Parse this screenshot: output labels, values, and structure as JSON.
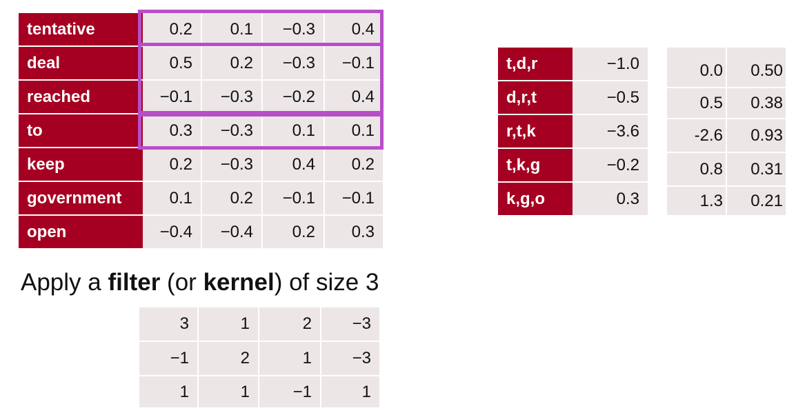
{
  "embedding_table": {
    "rows": [
      {
        "word": "tentative",
        "values": [
          "0.2",
          "0.1",
          "−0.3",
          "0.4"
        ]
      },
      {
        "word": "deal",
        "values": [
          "0.5",
          "0.2",
          "−0.3",
          "−0.1"
        ]
      },
      {
        "word": "reached",
        "values": [
          "−0.1",
          "−0.3",
          "−0.2",
          "0.4"
        ]
      },
      {
        "word": "to",
        "values": [
          "0.3",
          "−0.3",
          "0.1",
          "0.1"
        ]
      },
      {
        "word": "keep",
        "values": [
          "0.2",
          "−0.3",
          "0.4",
          "0.2"
        ]
      },
      {
        "word": "government",
        "values": [
          "0.1",
          "0.2",
          "−0.1",
          "−0.1"
        ]
      },
      {
        "word": "open",
        "values": [
          "−0.4",
          "−0.4",
          "0.2",
          "0.3"
        ]
      }
    ],
    "highlight_color": "#b84fc8",
    "label_color": "#a50021"
  },
  "caption": {
    "part1": "Apply a ",
    "filter": "filter",
    "part2": " (or ",
    "kernel": "kernel",
    "part3": ") of size 3"
  },
  "filter_table": {
    "rows": [
      [
        "3",
        "1",
        "2",
        "−3"
      ],
      [
        "−1",
        "2",
        "1",
        "−3"
      ],
      [
        "1",
        "1",
        "−1",
        "1"
      ]
    ]
  },
  "conv_table": {
    "rows": [
      {
        "label": "t,d,r",
        "value": "−1.0"
      },
      {
        "label": "d,r,t",
        "value": "−0.5"
      },
      {
        "label": "r,t,k",
        "value": "−3.6"
      },
      {
        "label": "t,k,g",
        "value": "−0.2"
      },
      {
        "label": "k,g,o",
        "value": "0.3"
      }
    ]
  },
  "extra_table": {
    "rows": [
      [
        "0.0",
        "0.50"
      ],
      [
        "0.5",
        "0.38"
      ],
      [
        "-2.6",
        "0.93"
      ],
      [
        "0.8",
        "0.31"
      ],
      [
        "1.3",
        "0.21"
      ]
    ]
  }
}
